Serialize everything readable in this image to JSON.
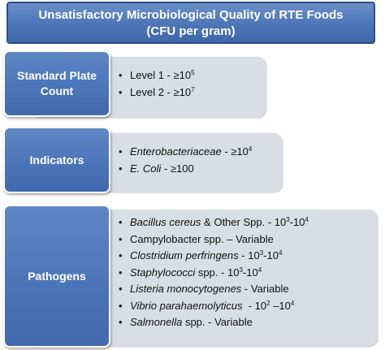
{
  "title": {
    "line1": "Unsatisfactory Microbiological Quality of RTE Foods",
    "line2": "(CFU per gram)"
  },
  "sections": [
    {
      "label": [
        "Standard Plate",
        "Count"
      ],
      "items": [
        {
          "name": "Level 1",
          "sep": " - ",
          "value": "≥10",
          "sup": "5"
        },
        {
          "name": "Level 2",
          "sep": " - ",
          "value": "≥10",
          "sup": "7"
        }
      ]
    },
    {
      "label": [
        "Indicators"
      ],
      "items": [
        {
          "name": "Enterobacteriaceae",
          "sep": " - ",
          "value": "≥10",
          "sup": "4"
        },
        {
          "name": "E. Coli",
          "sep": " - ",
          "value": "≥100"
        }
      ]
    },
    {
      "label": [
        "Pathogens"
      ],
      "items": [
        {
          "name": "Bacillus cereus",
          "suffix": " & Other Spp.",
          "sep": " - ",
          "value": "10",
          "sup": "3",
          "value2": "-10",
          "sup2": "4"
        },
        {
          "name": "Campylobacter spp.",
          "sep": " – ",
          "value": "Variable"
        },
        {
          "name": "Clostridium perfringens",
          "sep": " - ",
          "value": "10",
          "sup": "3",
          "value2": "-10",
          "sup2": "4"
        },
        {
          "name": "Staphylococci",
          "suffix": " spp.",
          "sep": " - ",
          "value": "10",
          "sup": "3",
          "value2": "-10",
          "sup2": "4"
        },
        {
          "name": "Listeria monocytogenes",
          "sep": " - ",
          "value": "Variable"
        },
        {
          "name": "Vibrio parahaemolyticus",
          "sep": "  - ",
          "value": "10",
          "sup": "2",
          "value2": " –10",
          "sup2": "4"
        },
        {
          "name": "Salmonella",
          "suffix": " spp.",
          "sep": " - ",
          "value": "Variable"
        }
      ]
    }
  ],
  "colors": {
    "header_fill": "#4a73b6",
    "label_fill": "#4a74b8",
    "panel_fill": "#d9dde6"
  }
}
